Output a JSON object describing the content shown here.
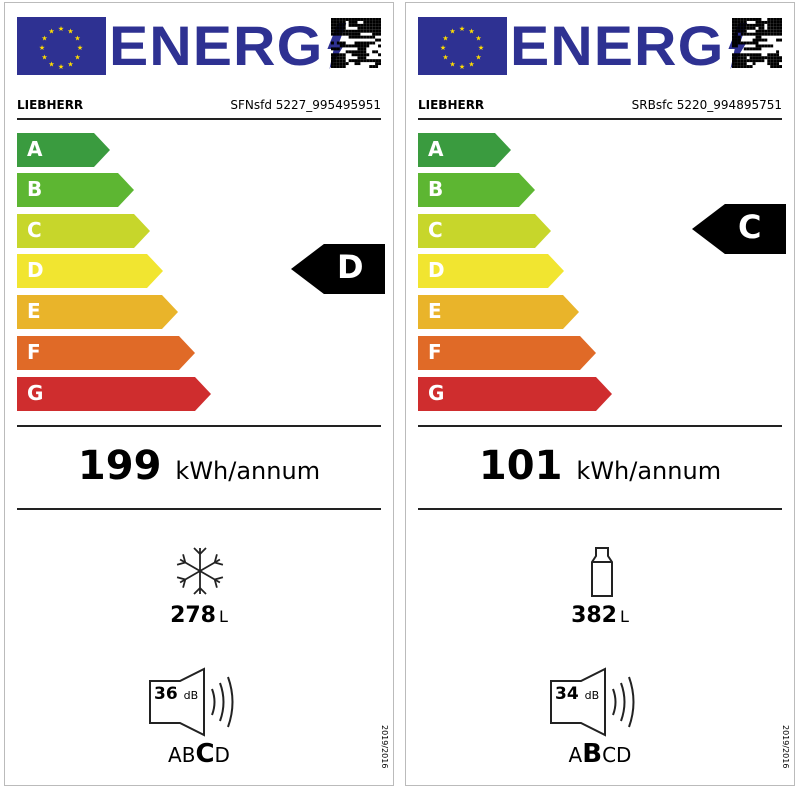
{
  "energy_word": "ENERG",
  "class_colors": {
    "A": "#3a9b3f",
    "B": "#5db632",
    "C": "#c7d62b",
    "D": "#f1e530",
    "E": "#e9b42a",
    "F": "#e06a27",
    "G": "#cf2d2e"
  },
  "classes": [
    "A",
    "B",
    "C",
    "D",
    "E",
    "F",
    "G"
  ],
  "labels": [
    {
      "brand": "LIEBHERR",
      "model": "SFNsfd 5227_995495951",
      "energy_class": "D",
      "consumption": "199",
      "consumption_unit": "kWh/annum",
      "compartment_icon": "snowflake-icon",
      "volume": "278",
      "volume_unit": "L",
      "noise": "36",
      "noise_unit": "dB",
      "noise_classes": [
        "A",
        "B",
        "C",
        "D"
      ],
      "noise_class": "C",
      "regulation": "2019/2016"
    },
    {
      "brand": "LIEBHERR",
      "model": "SRBsfc 5220_994895751",
      "energy_class": "C",
      "consumption": "101",
      "consumption_unit": "kWh/annum",
      "compartment_icon": "bottle-icon",
      "volume": "382",
      "volume_unit": "L",
      "noise": "34",
      "noise_unit": "dB",
      "noise_classes": [
        "A",
        "B",
        "C",
        "D"
      ],
      "noise_class": "B",
      "regulation": "2019/2016"
    }
  ]
}
